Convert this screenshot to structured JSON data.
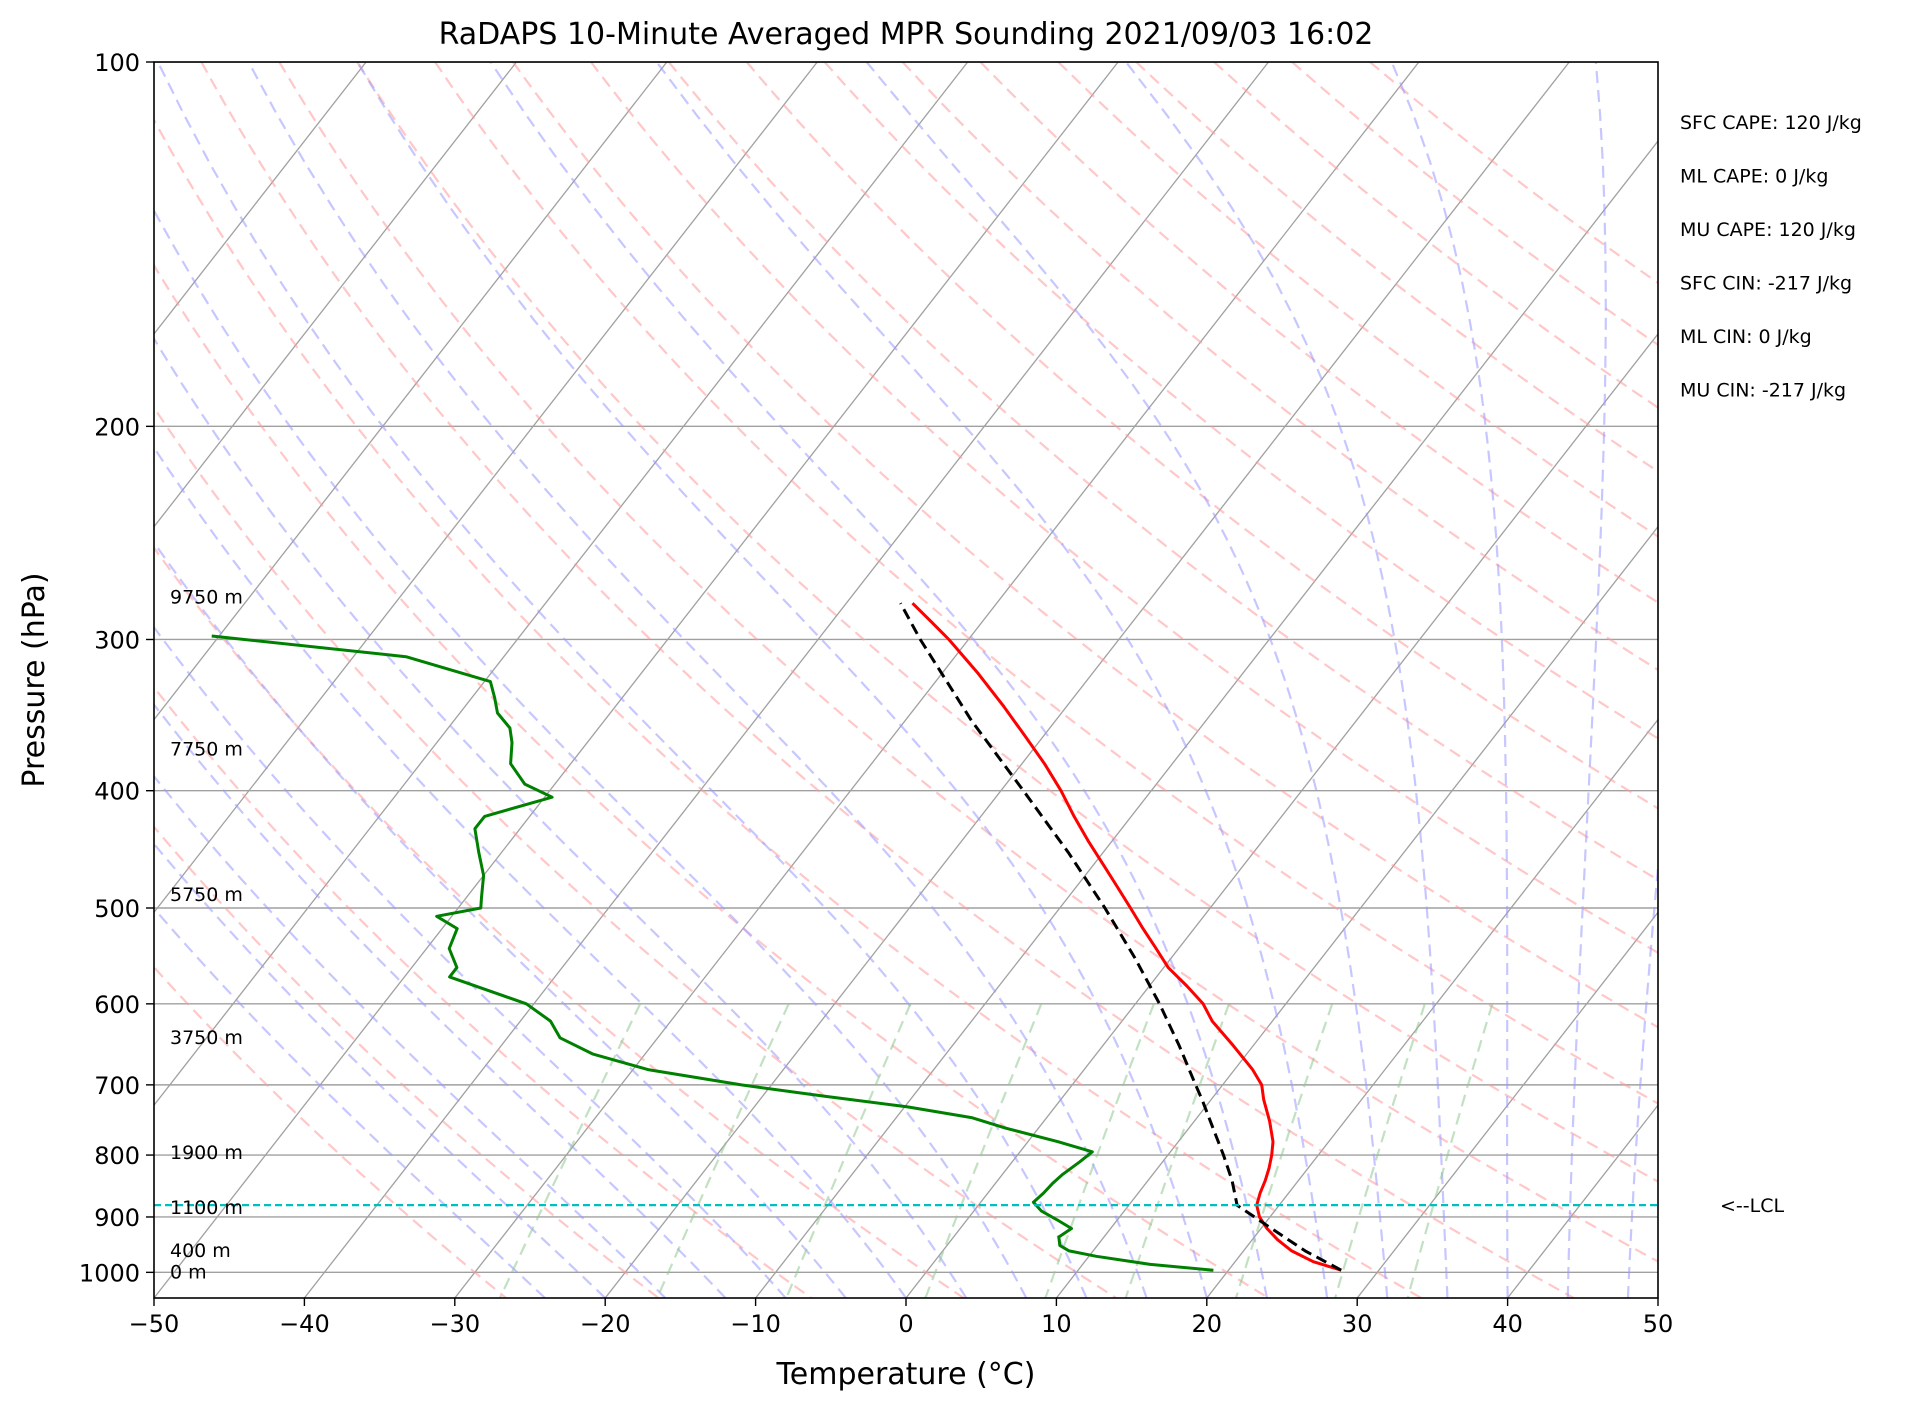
{
  "chart_data": {
    "type": "line",
    "title": "RaDAPS 10-Minute Averaged MPR Sounding 2021/09/03 16:02",
    "xlabel": "Temperature (°C)",
    "ylabel": "Pressure (hPa)",
    "xlim": [
      -50,
      50
    ],
    "ylim": [
      1050,
      100
    ],
    "y_scale": "log",
    "skew": "skew-T",
    "x_ticks": [
      -50,
      -40,
      -30,
      -20,
      -10,
      0,
      10,
      20,
      30,
      40,
      50
    ],
    "y_ticks": [
      100,
      200,
      300,
      400,
      500,
      600,
      700,
      800,
      900,
      1000
    ],
    "x_tick_labels": [
      "−50",
      "−40",
      "−30",
      "−20",
      "−10",
      "0",
      "10",
      "20",
      "30",
      "40",
      "50"
    ],
    "y_tick_labels": [
      "100",
      "200",
      "300",
      "400",
      "500",
      "600",
      "700",
      "800",
      "900",
      "1000"
    ],
    "grid": true,
    "colors": {
      "temperature": "#ff0000",
      "dewpoint": "#008000",
      "parcel": "#000000",
      "lcl": "#00bfbf",
      "dry_adiabats": "#ff9999",
      "moist_adiabats": "#9999ff",
      "mixing_ratio": "#90c890",
      "isotherms": "#a0a0a0"
    },
    "height_labels": [
      {
        "text": "9750 m",
        "p": 277
      },
      {
        "text": "7750 m",
        "p": 370
      },
      {
        "text": "5750 m",
        "p": 488
      },
      {
        "text": "3750 m",
        "p": 640
      },
      {
        "text": "1900 m",
        "p": 797
      },
      {
        "text": "1100 m",
        "p": 885
      },
      {
        "text": "400 m",
        "p": 960
      },
      {
        "text": "0 m",
        "p": 1000
      }
    ],
    "lcl": {
      "label": "<--LCL",
      "p": 880
    },
    "stats": [
      "SFC CAPE: 120 J/kg",
      "ML CAPE: 0 J/kg",
      "MU CAPE: 120 J/kg",
      "SFC CIN: -217 J/kg",
      "ML CIN: 0 J/kg",
      "MU CIN: -217 J/kg"
    ],
    "series": [
      {
        "role": "temperature",
        "values": [
          {
            "p": 996,
            "t": 27.5
          },
          {
            "p": 980,
            "t": 25.2
          },
          {
            "p": 960,
            "t": 23.2
          },
          {
            "p": 940,
            "t": 21.7
          },
          {
            "p": 920,
            "t": 20.4
          },
          {
            "p": 900,
            "t": 19.3
          },
          {
            "p": 880,
            "t": 18.5
          },
          {
            "p": 860,
            "t": 18.1
          },
          {
            "p": 840,
            "t": 17.8
          },
          {
            "p": 820,
            "t": 17.4
          },
          {
            "p": 800,
            "t": 16.9
          },
          {
            "p": 780,
            "t": 16.3
          },
          {
            "p": 750,
            "t": 15.0
          },
          {
            "p": 720,
            "t": 13.5
          },
          {
            "p": 700,
            "t": 12.6
          },
          {
            "p": 680,
            "t": 11.2
          },
          {
            "p": 650,
            "t": 8.7
          },
          {
            "p": 620,
            "t": 6.0
          },
          {
            "p": 600,
            "t": 4.5
          },
          {
            "p": 580,
            "t": 2.5
          },
          {
            "p": 560,
            "t": 0.3
          },
          {
            "p": 540,
            "t": -1.5
          },
          {
            "p": 520,
            "t": -3.4
          },
          {
            "p": 500,
            "t": -5.3
          },
          {
            "p": 480,
            "t": -7.3
          },
          {
            "p": 460,
            "t": -9.4
          },
          {
            "p": 440,
            "t": -11.6
          },
          {
            "p": 420,
            "t": -13.8
          },
          {
            "p": 400,
            "t": -16.0
          },
          {
            "p": 380,
            "t": -18.5
          },
          {
            "p": 360,
            "t": -21.3
          },
          {
            "p": 340,
            "t": -24.3
          },
          {
            "p": 320,
            "t": -27.6
          },
          {
            "p": 300,
            "t": -31.3
          },
          {
            "p": 290,
            "t": -33.4
          },
          {
            "p": 280,
            "t": -35.6
          }
        ]
      },
      {
        "role": "dewpoint",
        "values": [
          {
            "p": 996,
            "t": 19.0
          },
          {
            "p": 985,
            "t": 14.5
          },
          {
            "p": 970,
            "t": 10.5
          },
          {
            "p": 960,
            "t": 8.4
          },
          {
            "p": 950,
            "t": 7.5
          },
          {
            "p": 935,
            "t": 7.0
          },
          {
            "p": 920,
            "t": 7.4
          },
          {
            "p": 905,
            "t": 6.0
          },
          {
            "p": 890,
            "t": 4.5
          },
          {
            "p": 875,
            "t": 3.5
          },
          {
            "p": 860,
            "t": 3.7
          },
          {
            "p": 845,
            "t": 3.8
          },
          {
            "p": 830,
            "t": 4.0
          },
          {
            "p": 810,
            "t": 4.5
          },
          {
            "p": 795,
            "t": 4.8
          },
          {
            "p": 780,
            "t": 2.0
          },
          {
            "p": 760,
            "t": -2.2
          },
          {
            "p": 745,
            "t": -5.0
          },
          {
            "p": 730,
            "t": -9.8
          },
          {
            "p": 715,
            "t": -16.0
          },
          {
            "p": 700,
            "t": -22.0
          },
          {
            "p": 680,
            "t": -29.0
          },
          {
            "p": 660,
            "t": -33.5
          },
          {
            "p": 640,
            "t": -36.5
          },
          {
            "p": 620,
            "t": -38.0
          },
          {
            "p": 600,
            "t": -40.5
          },
          {
            "p": 570,
            "t": -47.0
          },
          {
            "p": 560,
            "t": -47.0
          },
          {
            "p": 540,
            "t": -48.5
          },
          {
            "p": 520,
            "t": -49.0
          },
          {
            "p": 508,
            "t": -51.0
          },
          {
            "p": 500,
            "t": -48.5
          },
          {
            "p": 490,
            "t": -49.0
          },
          {
            "p": 470,
            "t": -50.0
          },
          {
            "p": 450,
            "t": -51.5
          },
          {
            "p": 430,
            "t": -53.0
          },
          {
            "p": 420,
            "t": -53.0
          },
          {
            "p": 405,
            "t": -49.5
          },
          {
            "p": 395,
            "t": -52.0
          },
          {
            "p": 380,
            "t": -54.0
          },
          {
            "p": 365,
            "t": -55.0
          },
          {
            "p": 355,
            "t": -55.9
          },
          {
            "p": 345,
            "t": -57.5
          },
          {
            "p": 335,
            "t": -58.5
          },
          {
            "p": 325,
            "t": -59.6
          },
          {
            "p": 310,
            "t": -66.5
          },
          {
            "p": 298,
            "t": -80.5
          }
        ]
      },
      {
        "role": "parcel",
        "values": [
          {
            "p": 996,
            "t": 27.5
          },
          {
            "p": 960,
            "t": 24.1
          },
          {
            "p": 920,
            "t": 20.7
          },
          {
            "p": 880,
            "t": 17.2
          },
          {
            "p": 840,
            "t": 15.6
          },
          {
            "p": 800,
            "t": 13.7
          },
          {
            "p": 760,
            "t": 11.6
          },
          {
            "p": 720,
            "t": 9.4
          },
          {
            "p": 700,
            "t": 8.2
          },
          {
            "p": 650,
            "t": 5.1
          },
          {
            "p": 600,
            "t": 1.6
          },
          {
            "p": 550,
            "t": -2.4
          },
          {
            "p": 500,
            "t": -7.0
          },
          {
            "p": 450,
            "t": -12.3
          },
          {
            "p": 400,
            "t": -18.5
          },
          {
            "p": 350,
            "t": -25.6
          },
          {
            "p": 300,
            "t": -33.2
          },
          {
            "p": 280,
            "t": -36.4
          }
        ]
      }
    ]
  }
}
